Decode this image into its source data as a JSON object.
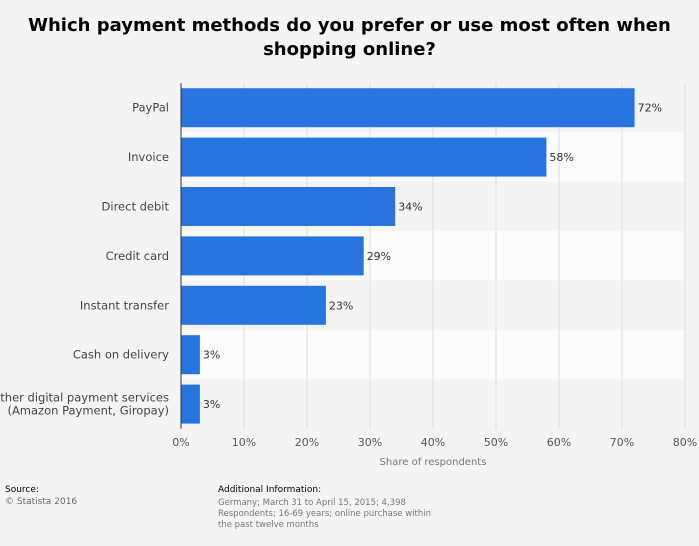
{
  "chart_data": {
    "type": "bar",
    "orientation": "horizontal",
    "title": "Which payment methods do you prefer or use most often when shopping online?",
    "categories": [
      "PayPal",
      "Invoice",
      "Direct debit",
      "Credit card",
      "Instant transfer",
      "Cash on delivery",
      "Other digital payment services (Amazon Payment, Giropay)"
    ],
    "values": [
      72,
      58,
      34,
      29,
      23,
      3,
      3
    ],
    "value_labels": [
      "72%",
      "58%",
      "34%",
      "29%",
      "23%",
      "3%",
      "3%"
    ],
    "xlabel": "Share of respondents",
    "ylabel": "",
    "xlim": [
      0,
      80
    ],
    "xticks": [
      0,
      10,
      20,
      30,
      40,
      50,
      60,
      70,
      80
    ],
    "xtick_labels": [
      "0%",
      "10%",
      "20%",
      "30%",
      "40%",
      "50%",
      "60%",
      "70%",
      "80%"
    ],
    "grid": true,
    "bar_color": "#2874de"
  },
  "footer": {
    "source_label": "Source:",
    "source_value": "© Statista 2016",
    "info_label": "Additional Information:",
    "info_text": "Germany; March 31 to April 15, 2015; 4,398 Respondents; 16-69 years; online purchase within the past twelve months"
  }
}
